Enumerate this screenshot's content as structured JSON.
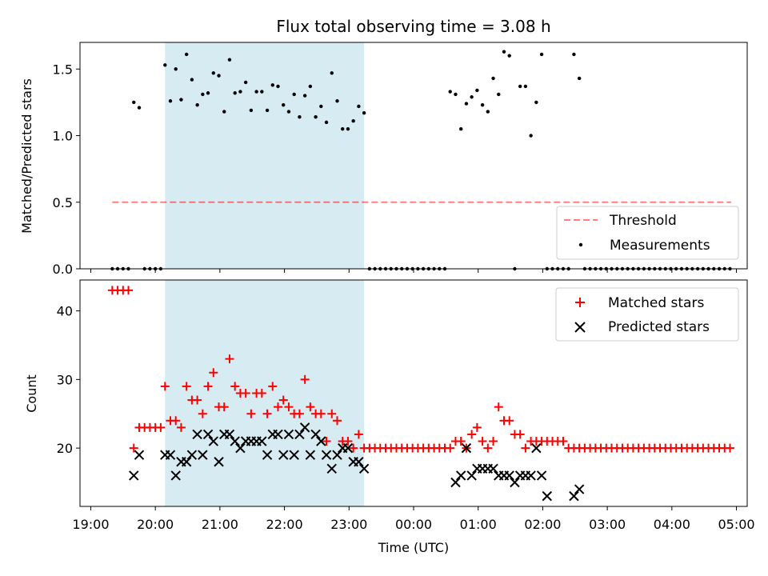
{
  "colors": {
    "span": "#add8e6",
    "threshold": "#ff0000",
    "matched": "#ff0000",
    "predicted": "#000000",
    "measurement": "#000000"
  },
  "chart_data": [
    {
      "type": "scatter",
      "title": "Flux total observing time = 3.08 h",
      "ylabel": "Matched/Predicted stars",
      "xlabel": "",
      "xlim": [
        "18:50",
        "05:10"
      ],
      "ylim": [
        0,
        1.7
      ],
      "yticks": [
        0.0,
        0.5,
        1.0,
        1.5
      ],
      "ytick_labels": [
        "0.0",
        "0.5",
        "1.0",
        "1.5"
      ],
      "grid": false,
      "legend_position": "lower-right",
      "shaded_span": [
        "20:09",
        "23:14"
      ],
      "series": [
        {
          "name": "Threshold",
          "style": "dashed-line",
          "x": [
            "19:20",
            "04:55"
          ],
          "y": [
            0.5,
            0.5
          ]
        },
        {
          "name": "Measurements",
          "style": "dot",
          "x": [
            "19:20",
            "19:25",
            "19:30",
            "19:35",
            "19:40",
            "19:45",
            "19:50",
            "19:55",
            "20:00",
            "20:05",
            "20:09",
            "20:14",
            "20:19",
            "20:24",
            "20:29",
            "20:34",
            "20:39",
            "20:44",
            "20:49",
            "20:54",
            "20:59",
            "21:04",
            "21:09",
            "21:14",
            "21:19",
            "21:24",
            "21:29",
            "21:34",
            "21:39",
            "21:44",
            "21:49",
            "21:54",
            "21:59",
            "22:04",
            "22:09",
            "22:14",
            "22:19",
            "22:24",
            "22:29",
            "22:34",
            "22:39",
            "22:44",
            "22:49",
            "22:54",
            "22:59",
            "23:04",
            "23:09",
            "23:14",
            "23:19",
            "23:24",
            "23:29",
            "23:34",
            "23:39",
            "23:44",
            "23:49",
            "23:54",
            "23:59",
            "00:04",
            "00:09",
            "00:14",
            "00:19",
            "00:24",
            "00:29",
            "00:34",
            "00:39",
            "00:44",
            "00:49",
            "00:54",
            "00:59",
            "01:04",
            "01:09",
            "01:14",
            "01:19",
            "01:24",
            "01:29",
            "01:34",
            "01:39",
            "01:44",
            "01:49",
            "01:54",
            "01:59",
            "02:04",
            "02:09",
            "02:14",
            "02:19",
            "02:24",
            "02:29",
            "02:34",
            "02:39",
            "02:44",
            "02:49",
            "02:54",
            "02:59",
            "03:04",
            "03:09",
            "03:14",
            "03:19",
            "03:24",
            "03:29",
            "03:34",
            "03:39",
            "03:44",
            "03:49",
            "03:54",
            "03:59",
            "04:04",
            "04:09",
            "04:14",
            "04:19",
            "04:24",
            "04:29",
            "04:34",
            "04:39",
            "04:44",
            "04:49",
            "04:54"
          ],
          "y": [
            0,
            0,
            0,
            0,
            1.25,
            1.21,
            0,
            0,
            0,
            0,
            1.53,
            1.26,
            1.5,
            1.27,
            1.61,
            1.42,
            1.23,
            1.31,
            1.32,
            1.47,
            1.45,
            1.18,
            1.57,
            1.32,
            1.33,
            1.4,
            1.19,
            1.33,
            1.33,
            1.19,
            1.38,
            1.37,
            1.23,
            1.18,
            1.31,
            1.14,
            1.3,
            1.37,
            1.14,
            1.22,
            1.1,
            1.47,
            1.26,
            1.05,
            1.05,
            1.11,
            1.22,
            1.17,
            0,
            0,
            0,
            0,
            0,
            0,
            0,
            0,
            0,
            0,
            0,
            0,
            0,
            0,
            0,
            1.33,
            1.31,
            1.05,
            1.24,
            1.29,
            1.34,
            1.23,
            1.18,
            1.43,
            1.31,
            1.63,
            1.6,
            0,
            1.37,
            1.37,
            1.0,
            1.25,
            1.61,
            0,
            0,
            0,
            0,
            0,
            1.61,
            1.43,
            0,
            0,
            0,
            0,
            0,
            0,
            0,
            0,
            0,
            0,
            0,
            0,
            0,
            0,
            0,
            0,
            0,
            0,
            0,
            0,
            0,
            0,
            0,
            0,
            0,
            0,
            0,
            0
          ]
        }
      ]
    },
    {
      "type": "scatter",
      "title": "",
      "ylabel": "Count",
      "xlabel": "Time (UTC)",
      "xlim": [
        "18:50",
        "05:10"
      ],
      "ylim": [
        11.5,
        44.5
      ],
      "yticks": [
        20,
        30,
        40
      ],
      "ytick_labels": [
        "20",
        "30",
        "40"
      ],
      "xticks": [
        "19:00",
        "20:00",
        "21:00",
        "22:00",
        "23:00",
        "00:00",
        "01:00",
        "02:00",
        "03:00",
        "04:00",
        "05:00"
      ],
      "xtick_labels": [
        "19:00",
        "20:00",
        "21:00",
        "22:00",
        "23:00",
        "00:00",
        "01:00",
        "02:00",
        "03:00",
        "04:00",
        "05:00"
      ],
      "grid": false,
      "legend_position": "upper-right",
      "shaded_span": [
        "20:09",
        "23:14"
      ],
      "series": [
        {
          "name": "Matched stars",
          "style": "plus",
          "x": [
            "19:20",
            "19:25",
            "19:30",
            "19:35",
            "19:40",
            "19:45",
            "19:50",
            "19:55",
            "20:00",
            "20:05",
            "20:09",
            "20:14",
            "20:19",
            "20:24",
            "20:29",
            "20:34",
            "20:39",
            "20:44",
            "20:49",
            "20:54",
            "20:59",
            "21:04",
            "21:09",
            "21:14",
            "21:19",
            "21:24",
            "21:29",
            "21:34",
            "21:39",
            "21:44",
            "21:49",
            "21:54",
            "21:59",
            "22:04",
            "22:09",
            "22:14",
            "22:19",
            "22:24",
            "22:29",
            "22:34",
            "22:39",
            "22:44",
            "22:49",
            "22:54",
            "22:59",
            "23:04",
            "23:09",
            "23:14",
            "23:19",
            "23:24",
            "23:29",
            "23:34",
            "23:39",
            "23:44",
            "23:49",
            "23:54",
            "23:59",
            "00:04",
            "00:09",
            "00:14",
            "00:19",
            "00:24",
            "00:29",
            "00:34",
            "00:39",
            "00:44",
            "00:49",
            "00:54",
            "00:59",
            "01:04",
            "01:09",
            "01:14",
            "01:19",
            "01:24",
            "01:29",
            "01:34",
            "01:39",
            "01:44",
            "01:49",
            "01:54",
            "01:59",
            "02:04",
            "02:09",
            "02:14",
            "02:19",
            "02:24",
            "02:29",
            "02:34",
            "02:39",
            "02:44",
            "02:49",
            "02:54",
            "02:59",
            "03:04",
            "03:09",
            "03:14",
            "03:19",
            "03:24",
            "03:29",
            "03:34",
            "03:39",
            "03:44",
            "03:49",
            "03:54",
            "03:59",
            "04:04",
            "04:09",
            "04:14",
            "04:19",
            "04:24",
            "04:29",
            "04:34",
            "04:39",
            "04:44",
            "04:49",
            "04:54"
          ],
          "y": [
            43,
            43,
            43,
            43,
            20,
            23,
            23,
            23,
            23,
            23,
            29,
            24,
            24,
            23,
            29,
            27,
            27,
            25,
            29,
            31,
            26,
            26,
            33,
            29,
            28,
            28,
            25,
            28,
            28,
            25,
            29,
            26,
            27,
            26,
            25,
            25,
            30,
            26,
            25,
            25,
            21,
            25,
            24,
            21,
            21,
            20,
            22,
            20,
            20,
            20,
            20,
            20,
            20,
            20,
            20,
            20,
            20,
            20,
            20,
            20,
            20,
            20,
            20,
            20,
            21,
            21,
            20,
            22,
            23,
            21,
            20,
            21,
            26,
            24,
            24,
            22,
            22,
            20,
            21,
            21,
            21,
            21,
            21,
            21,
            21,
            20,
            20,
            20,
            20,
            20,
            20,
            20,
            20,
            20,
            20,
            20,
            20,
            20,
            20,
            20,
            20,
            20,
            20,
            20,
            20,
            20,
            20,
            20,
            20,
            20,
            20,
            20,
            20,
            20,
            20,
            20
          ]
        },
        {
          "name": "Predicted stars",
          "style": "cross",
          "x": [
            "19:40",
            "19:45",
            "20:09",
            "20:14",
            "20:19",
            "20:24",
            "20:29",
            "20:34",
            "20:39",
            "20:44",
            "20:49",
            "20:54",
            "20:59",
            "21:04",
            "21:09",
            "21:14",
            "21:19",
            "21:24",
            "21:29",
            "21:34",
            "21:39",
            "21:44",
            "21:49",
            "21:54",
            "21:59",
            "22:04",
            "22:09",
            "22:14",
            "22:19",
            "22:24",
            "22:29",
            "22:34",
            "22:39",
            "22:44",
            "22:49",
            "22:54",
            "22:59",
            "23:04",
            "23:09",
            "23:14",
            "00:39",
            "00:44",
            "00:49",
            "00:54",
            "00:59",
            "01:04",
            "01:09",
            "01:14",
            "01:19",
            "01:24",
            "01:29",
            "01:34",
            "01:39",
            "01:44",
            "01:49",
            "01:54",
            "01:59",
            "02:04",
            "02:29",
            "02:34"
          ],
          "y": [
            16,
            19,
            19,
            19,
            16,
            18,
            18,
            19,
            22,
            19,
            22,
            21,
            18,
            22,
            22,
            21,
            20,
            21,
            21,
            21,
            21,
            19,
            22,
            22,
            19,
            22,
            19,
            22,
            23,
            19,
            22,
            21,
            19,
            17,
            19,
            20,
            20,
            18,
            18,
            17,
            15,
            16,
            20,
            16,
            17,
            17,
            17,
            17,
            16,
            16,
            16,
            15,
            16,
            16,
            16,
            20,
            16,
            13,
            13,
            14
          ]
        }
      ]
    }
  ]
}
